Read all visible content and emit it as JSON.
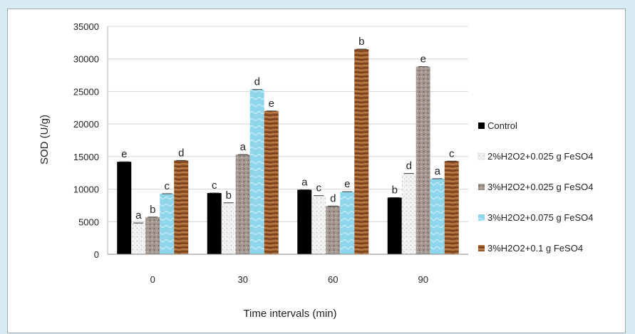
{
  "chart_data": {
    "type": "bar",
    "title": "",
    "xlabel": "Time intervals (min)",
    "ylabel": "SOD (U/g)",
    "ylim": [
      0,
      35000
    ],
    "yticks": [
      "0",
      "5000",
      "10000",
      "15000",
      "20000",
      "25000",
      "30000",
      "35000"
    ],
    "categories": [
      "0",
      "30",
      "60",
      "90"
    ],
    "grid": true,
    "legend": "right",
    "series": [
      {
        "name": "Control",
        "color": "#000000",
        "values": [
          14200,
          9400,
          9900,
          8700
        ],
        "labels": [
          "e",
          "c",
          "a",
          "b"
        ]
      },
      {
        "name": "2%H2O2+0.025 g FeSO4",
        "color": "#efefef",
        "values": [
          4800,
          7900,
          9000,
          12400
        ],
        "labels": [
          "a",
          "b",
          "c",
          "d"
        ]
      },
      {
        "name": "3%H2O2+0.025 g FeSO4",
        "color": "#a89a92",
        "values": [
          5700,
          15300,
          7400,
          28800
        ],
        "labels": [
          "b",
          "a",
          "d",
          "e"
        ]
      },
      {
        "name": "3%H2O2+0.075 g FeSO4",
        "color": "#8fd6ea",
        "values": [
          9300,
          25300,
          9600,
          11600
        ],
        "labels": [
          "c",
          "d",
          "e",
          "a"
        ]
      },
      {
        "name": "3%H2O2+0.1 g FeSO4",
        "color": "#9c5a2c",
        "values": [
          14400,
          22000,
          31500,
          14300
        ],
        "labels": [
          "d",
          "e",
          "b",
          "c"
        ]
      }
    ]
  }
}
